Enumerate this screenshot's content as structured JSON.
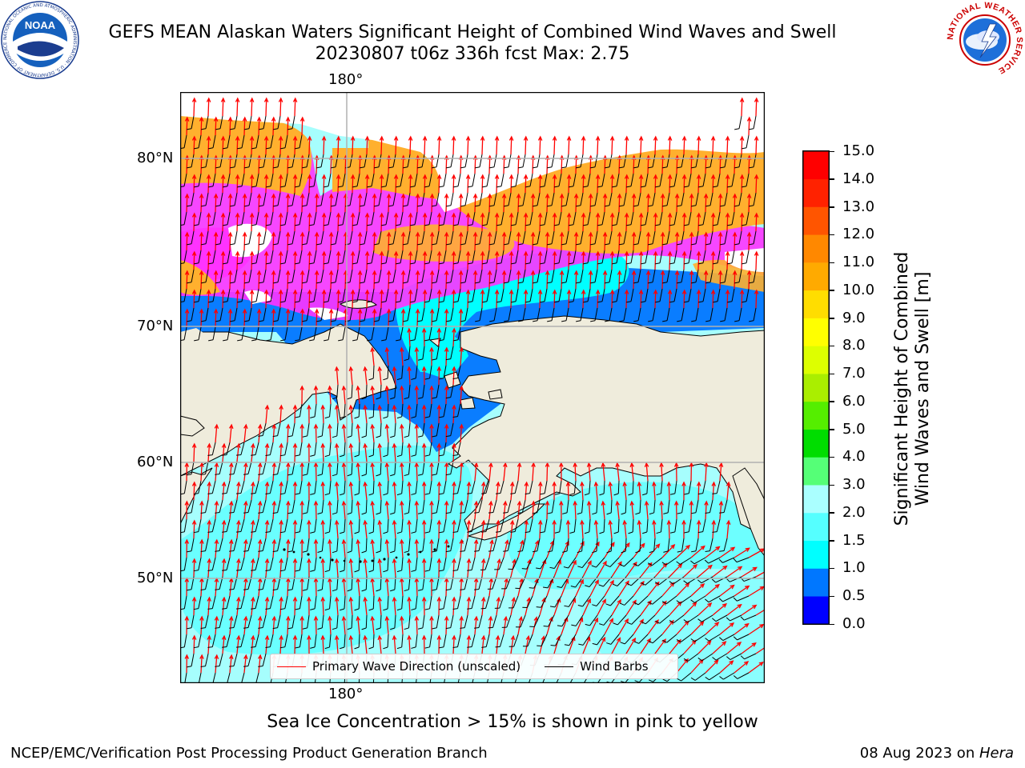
{
  "header": {
    "title_line1": "GEFS MEAN Alaskan Waters Significant Height of Combined Wind Waves and Swell",
    "title_line2": "20230807 t06z 336h fcst   Max: 2.75"
  },
  "logos": {
    "left": {
      "name": "noaa-logo",
      "text": "NOAA",
      "ring_text": "NATIONAL OCEANIC AND ATMOSPHERIC ADMINISTRATION · U.S. DEPARTMENT OF COMMERCE"
    },
    "right": {
      "name": "nws-logo",
      "ring_text": "NATIONAL WEATHER SERVICE"
    }
  },
  "map": {
    "lon_labels": {
      "top": "180°",
      "bottom": "180°"
    },
    "lat_labels": [
      "80°N",
      "70°N",
      "60°N",
      "50°N"
    ],
    "colors": {
      "land": "#efecdc",
      "ocean_default": "#a6fefd",
      "ice_low": "#ff33ff",
      "ice_high": "#ffb02e",
      "wave_arrow": "#ff0000",
      "wind_barb": "#000000",
      "grid": "#b0b0b0"
    }
  },
  "legend": {
    "wave_label": "Primary Wave Direction (unscaled)",
    "barb_label": "Wind Barbs"
  },
  "colorbar": {
    "title_line1": "Significant Height of Combined",
    "title_line2": "Wind Waves and Swell [m]",
    "ticks": [
      "15.0",
      "14.0",
      "13.0",
      "12.0",
      "11.0",
      "10.0",
      "9.0",
      "8.0",
      "7.0",
      "6.0",
      "5.0",
      "4.0",
      "3.0",
      "2.0",
      "1.5",
      "1.0",
      "0.5",
      "0.0"
    ],
    "colors": [
      "#0000ff",
      "#0077ff",
      "#00ffff",
      "#55ffff",
      "#aaffff",
      "#55ff77",
      "#00dd00",
      "#55ee00",
      "#aaee00",
      "#ddff00",
      "#ffff00",
      "#ffdd00",
      "#ffaa00",
      "#ff8800",
      "#ff5500",
      "#ff2200",
      "#ff0000"
    ]
  },
  "caption": "Sea Ice Concentration > 15% is shown in pink to yellow",
  "footer": {
    "left": "NCEP/EMC/Verification Post Processing Product Generation Branch",
    "right_date": "08 Aug 2023 on ",
    "right_host": "Hera"
  }
}
